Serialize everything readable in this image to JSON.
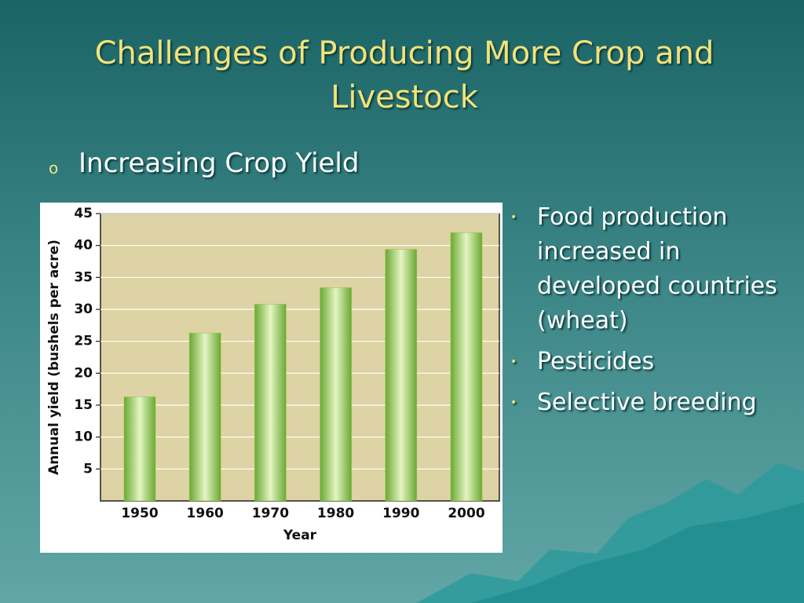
{
  "title": "Challenges of Producing More Crop and Livestock",
  "heading": "Increasing Crop Yield",
  "bullets": [
    "Food production increased in developed countries (wheat)",
    "Pesticides",
    "Selective breeding"
  ],
  "chart_data": {
    "type": "bar",
    "x_label": "Year",
    "y_label": "Annual yield (bushels per acre)",
    "categories": [
      "1950",
      "1960",
      "1970",
      "1980",
      "1990",
      "2000"
    ],
    "values": [
      16.3,
      26.3,
      30.8,
      33.4,
      39.4,
      42
    ],
    "color": "#8cc63f",
    "ylim": [
      0,
      45
    ],
    "yticks": [
      5,
      10,
      15,
      20,
      25,
      30,
      35,
      40,
      45
    ],
    "grid": true
  }
}
